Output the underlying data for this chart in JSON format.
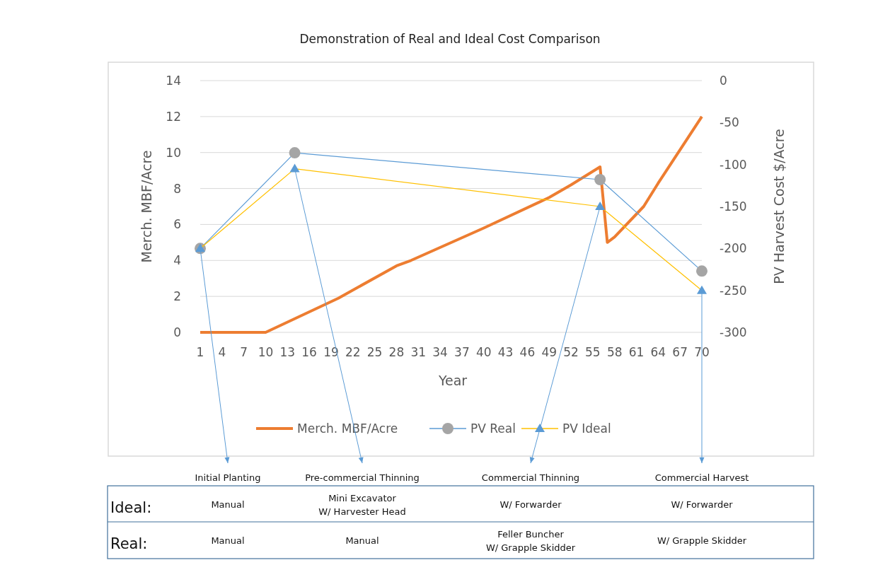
{
  "chart_data": {
    "type": "line",
    "title": "Demonstration of Real and Ideal Cost Comparison",
    "xlabel": "Year",
    "ylabel": "Merch. MBF/Acre",
    "y2label": "PV Harvest Cost $/Acre",
    "xlim": [
      1,
      70
    ],
    "xticks": [
      1,
      4,
      7,
      10,
      13,
      16,
      19,
      22,
      25,
      28,
      31,
      34,
      37,
      40,
      43,
      46,
      49,
      52,
      55,
      58,
      61,
      64,
      67,
      70
    ],
    "ylim": [
      0,
      14
    ],
    "yticks": [
      0,
      2,
      4,
      6,
      8,
      10,
      12,
      14
    ],
    "y2lim": [
      -300,
      0
    ],
    "y2ticks": [
      -300,
      -250,
      -200,
      -150,
      -100,
      -50,
      0
    ],
    "grid": "y",
    "legend": "bottom",
    "series": [
      {
        "name": "Merch. MBF/Acre",
        "color": "#ed7d31",
        "marker": "none",
        "x": [
          1,
          10,
          20,
          28,
          30,
          40,
          49,
          52,
          56,
          57,
          58,
          62,
          64,
          70
        ],
        "values": [
          0,
          0,
          1.9,
          3.7,
          4.0,
          5.8,
          7.5,
          8.2,
          9.2,
          5.0,
          5.3,
          7.0,
          8.3,
          12.0
        ]
      },
      {
        "name": "PV Real",
        "color": "#5b9bd5",
        "colors": [
          "#a5a5a5",
          "#a5a5a5",
          "#a5a5a5",
          "#a5a5a5"
        ],
        "marker": "circle",
        "axis": "y2",
        "x": [
          1,
          14,
          56,
          70
        ],
        "values": [
          -200,
          -86,
          -118,
          -227
        ]
      },
      {
        "name": "PV Ideal",
        "color": "#ffc000",
        "colors": [
          "#5b9bd5",
          "#5b9bd5",
          "#5b9bd5",
          "#5b9bd5"
        ],
        "marker": "triangle",
        "axis": "y2",
        "x": [
          1,
          14,
          56,
          70
        ],
        "values": [
          -200,
          -105,
          -150,
          -250
        ]
      }
    ],
    "annotations": [
      "Initial Planting",
      "Pre-commercial Thinning",
      "Commercial Thinning",
      "Commercial Harvest",
      "Ideal:",
      "Manual",
      "Mini Excavator\nW/ Harvester Head",
      "W/ Forwarder",
      "W/ Forwarder",
      "Real:",
      "Manual",
      "Manual",
      "Feller Buncher\nW/ Grapple Skidder",
      "W/ Grapple Skidder"
    ]
  }
}
